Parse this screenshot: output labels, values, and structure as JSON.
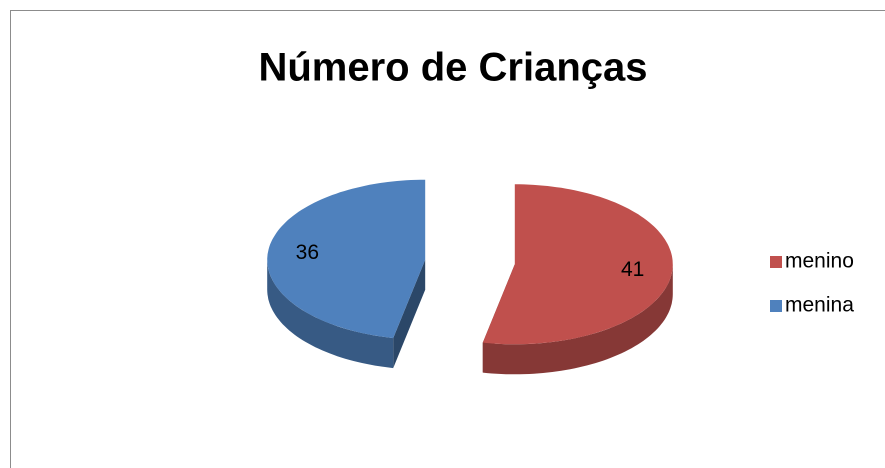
{
  "chart_data": {
    "type": "pie",
    "title": "Número de Crianças",
    "categories": [
      "menino",
      "menina"
    ],
    "values": [
      41,
      36
    ],
    "colors": [
      "#c0504d",
      "#4f81bd"
    ],
    "legend": "right",
    "exploded": true,
    "three_d": true
  }
}
